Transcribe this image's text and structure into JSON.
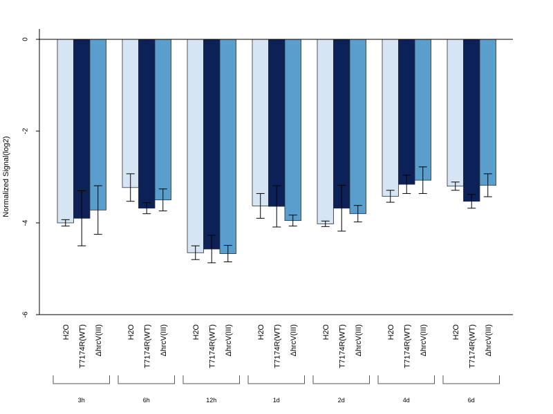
{
  "chart_data": {
    "type": "bar",
    "ylabel": "Normalized Signal(log2)",
    "xlabel": "",
    "title": "",
    "ylim": [
      -6,
      0.2
    ],
    "yticks": [
      0,
      -2,
      -4,
      -6
    ],
    "yticks_labels": [
      "0",
      "-2",
      "-4",
      "-6"
    ],
    "categories": [
      "3h",
      "6h",
      "12h",
      "1d",
      "2d",
      "4d",
      "6d"
    ],
    "series": [
      {
        "name": "H2O",
        "color": "#d6e5f4",
        "values": [
          -4.0,
          -3.23,
          -4.65,
          -3.63,
          -4.02,
          -3.42,
          -3.2
        ],
        "errors": [
          0.07,
          0.3,
          0.15,
          0.27,
          0.06,
          0.13,
          0.09
        ]
      },
      {
        "name": "T7174R(WT)",
        "color": "#0b2157",
        "values": [
          -3.9,
          -3.68,
          -4.57,
          -3.64,
          -3.68,
          -3.16,
          -3.53
        ],
        "errors": [
          0.6,
          0.12,
          0.3,
          0.45,
          0.5,
          0.2,
          0.15
        ]
      },
      {
        "name": "ΔhrcV(III)",
        "color": "#5a9ecd",
        "values": [
          -3.72,
          -3.5,
          -4.67,
          -3.95,
          -3.8,
          -3.07,
          -3.18
        ],
        "errors": [
          0.53,
          0.24,
          0.18,
          0.12,
          0.18,
          0.29,
          0.25
        ]
      }
    ]
  }
}
